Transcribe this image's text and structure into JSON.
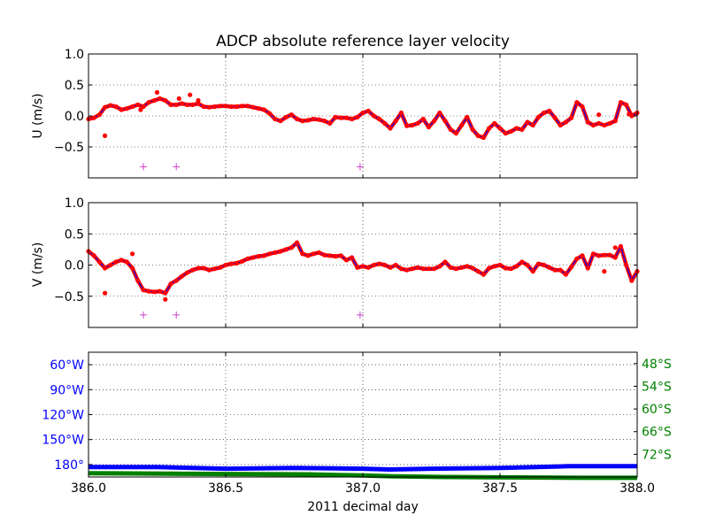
{
  "chart_data": [
    {
      "id": "u",
      "type": "scatter",
      "title": "ADCP absolute reference layer velocity",
      "ylabel": "U (m/s)",
      "xlim": [
        386.0,
        388.0
      ],
      "ylim": [
        -1.0,
        1.0
      ],
      "yticks": [
        -0.5,
        0.0,
        0.5,
        1.0
      ],
      "ytick_labels": [
        "−0.5",
        "0.0",
        "0.5",
        "1.0"
      ],
      "xticks": [
        386.0,
        386.5,
        387.0,
        387.5,
        388.0
      ],
      "grid": true,
      "colors": {
        "points": "#ff0000",
        "line": "#0000ff",
        "flags": "#cc44cc"
      },
      "series": [
        {
          "kind": "points+line",
          "x": [
            386.0,
            386.02,
            386.04,
            386.06,
            386.08,
            386.1,
            386.12,
            386.14,
            386.16,
            386.18,
            386.2,
            386.22,
            386.24,
            386.26,
            386.28,
            386.3,
            386.32,
            386.34,
            386.36,
            386.38,
            386.4,
            386.42,
            386.44,
            386.46,
            386.48,
            386.5,
            386.52,
            386.54,
            386.56,
            386.58,
            386.6,
            386.62,
            386.64,
            386.66,
            386.68,
            386.7,
            386.72,
            386.74,
            386.76,
            386.78,
            386.8,
            386.82,
            386.84,
            386.86,
            386.88,
            386.9,
            386.92,
            386.94,
            386.96,
            386.98,
            387.0,
            387.02,
            387.04,
            387.06,
            387.08,
            387.1,
            387.12,
            387.14,
            387.16,
            387.18,
            387.2,
            387.22,
            387.24,
            387.26,
            387.28,
            387.3,
            387.32,
            387.34,
            387.36,
            387.38,
            387.4,
            387.42,
            387.44,
            387.46,
            387.48,
            387.5,
            387.52,
            387.54,
            387.56,
            387.58,
            387.6,
            387.62,
            387.64,
            387.66,
            387.68,
            387.7,
            387.72,
            387.74,
            387.76,
            387.78,
            387.8,
            387.82,
            387.84,
            387.86,
            387.88,
            387.9,
            387.92,
            387.94,
            387.96,
            387.98,
            388.0
          ],
          "y": [
            -0.05,
            -0.03,
            0.02,
            0.14,
            0.17,
            0.15,
            0.1,
            0.12,
            0.15,
            0.18,
            0.15,
            0.22,
            0.25,
            0.28,
            0.25,
            0.18,
            0.18,
            0.2,
            0.18,
            0.18,
            0.2,
            0.15,
            0.14,
            0.15,
            0.16,
            0.16,
            0.15,
            0.15,
            0.16,
            0.16,
            0.14,
            0.12,
            0.1,
            0.04,
            -0.05,
            -0.08,
            -0.02,
            0.02,
            -0.05,
            -0.08,
            -0.07,
            -0.05,
            -0.06,
            -0.08,
            -0.12,
            -0.02,
            -0.03,
            -0.03,
            -0.05,
            -0.02,
            0.05,
            0.08,
            0.0,
            -0.05,
            -0.12,
            -0.2,
            -0.08,
            0.05,
            -0.16,
            -0.15,
            -0.12,
            -0.05,
            -0.18,
            -0.08,
            0.05,
            -0.08,
            -0.22,
            -0.28,
            -0.15,
            -0.02,
            -0.22,
            -0.32,
            -0.35,
            -0.2,
            -0.12,
            -0.2,
            -0.28,
            -0.25,
            -0.2,
            -0.22,
            -0.1,
            -0.15,
            -0.02,
            0.05,
            0.08,
            -0.03,
            -0.15,
            -0.1,
            -0.03,
            0.22,
            0.15,
            -0.1,
            -0.15,
            -0.12,
            -0.15,
            -0.12,
            -0.08,
            0.22,
            0.18,
            0.0,
            0.05
          ]
        },
        {
          "kind": "outliers",
          "x": [
            386.06,
            386.19,
            386.25,
            386.33,
            386.37,
            386.4,
            387.86,
            387.97
          ],
          "y": [
            -0.32,
            0.1,
            0.38,
            0.28,
            0.34,
            0.25,
            0.02,
            0.03
          ]
        },
        {
          "kind": "flags",
          "x": [
            386.2,
            386.32,
            386.99
          ],
          "y": [
            -0.82,
            -0.82,
            -0.82
          ]
        }
      ]
    },
    {
      "id": "v",
      "type": "scatter",
      "ylabel": "V (m/s)",
      "xlim": [
        386.0,
        388.0
      ],
      "ylim": [
        -1.0,
        1.0
      ],
      "yticks": [
        -0.5,
        0.0,
        0.5,
        1.0
      ],
      "ytick_labels": [
        "−0.5",
        "0.0",
        "0.5",
        "1.0"
      ],
      "xticks": [
        386.0,
        386.5,
        387.0,
        387.5,
        388.0
      ],
      "grid": true,
      "colors": {
        "points": "#ff0000",
        "line": "#0000ff",
        "flags": "#cc44cc"
      },
      "series": [
        {
          "kind": "points+line",
          "x": [
            386.0,
            386.02,
            386.04,
            386.06,
            386.08,
            386.1,
            386.12,
            386.14,
            386.16,
            386.18,
            386.2,
            386.22,
            386.24,
            386.26,
            386.28,
            386.3,
            386.32,
            386.34,
            386.36,
            386.38,
            386.4,
            386.42,
            386.44,
            386.46,
            386.48,
            386.5,
            386.52,
            386.54,
            386.56,
            386.58,
            386.6,
            386.62,
            386.64,
            386.66,
            386.68,
            386.7,
            386.72,
            386.74,
            386.76,
            386.78,
            386.8,
            386.82,
            386.84,
            386.86,
            386.88,
            386.9,
            386.92,
            386.94,
            386.96,
            386.98,
            387.0,
            387.02,
            387.04,
            387.06,
            387.08,
            387.1,
            387.12,
            387.14,
            387.16,
            387.18,
            387.2,
            387.22,
            387.24,
            387.26,
            387.28,
            387.3,
            387.32,
            387.34,
            387.36,
            387.38,
            387.4,
            387.42,
            387.44,
            387.46,
            387.48,
            387.5,
            387.52,
            387.54,
            387.56,
            387.58,
            387.6,
            387.62,
            387.64,
            387.66,
            387.68,
            387.7,
            387.72,
            387.74,
            387.76,
            387.78,
            387.8,
            387.82,
            387.84,
            387.86,
            387.88,
            387.9,
            387.92,
            387.94,
            387.96,
            387.98,
            388.0
          ],
          "y": [
            0.22,
            0.15,
            0.05,
            -0.05,
            0.0,
            0.05,
            0.08,
            0.05,
            -0.05,
            -0.25,
            -0.4,
            -0.42,
            -0.43,
            -0.42,
            -0.45,
            -0.3,
            -0.25,
            -0.18,
            -0.12,
            -0.08,
            -0.05,
            -0.05,
            -0.08,
            -0.06,
            -0.04,
            0.0,
            0.02,
            0.03,
            0.06,
            0.1,
            0.12,
            0.14,
            0.15,
            0.18,
            0.2,
            0.22,
            0.25,
            0.28,
            0.36,
            0.18,
            0.15,
            0.18,
            0.2,
            0.16,
            0.15,
            0.14,
            0.15,
            0.08,
            0.12,
            -0.04,
            -0.02,
            -0.04,
            0.0,
            0.02,
            0.0,
            -0.04,
            0.0,
            -0.06,
            -0.08,
            -0.06,
            -0.04,
            -0.06,
            -0.06,
            -0.06,
            -0.02,
            0.05,
            -0.04,
            -0.06,
            -0.04,
            -0.02,
            -0.05,
            -0.1,
            -0.15,
            -0.05,
            -0.02,
            0.0,
            -0.05,
            -0.06,
            -0.02,
            0.05,
            0.0,
            -0.1,
            0.02,
            0.0,
            -0.04,
            -0.08,
            -0.08,
            -0.15,
            -0.03,
            0.1,
            0.15,
            -0.05,
            0.18,
            0.15,
            0.16,
            0.16,
            0.12,
            0.3,
            0.0,
            -0.25,
            -0.1
          ]
        },
        {
          "kind": "outliers",
          "x": [
            386.06,
            386.16,
            386.28,
            387.88,
            387.92
          ],
          "y": [
            -0.45,
            0.18,
            -0.55,
            -0.1,
            0.28
          ]
        },
        {
          "kind": "flags",
          "x": [
            386.2,
            386.32,
            386.99
          ],
          "y": [
            -0.8,
            -0.8,
            -0.8
          ]
        }
      ]
    },
    {
      "id": "position",
      "type": "line",
      "xlabel": "2011 decimal day",
      "xlim": [
        386.0,
        388.0
      ],
      "xticks": [
        386.0,
        386.5,
        387.0,
        387.5,
        388.0
      ],
      "xtick_labels": [
        "386.0",
        "386.5",
        "387.0",
        "387.5",
        "388.0"
      ],
      "left_ylim": [
        195,
        45
      ],
      "left_yticks": [
        60,
        90,
        120,
        150,
        180
      ],
      "left_ytick_labels": [
        "60°W",
        "90°W",
        "120°W",
        "150°W",
        "180°"
      ],
      "right_ylim": [
        -78,
        -45
      ],
      "right_yticks": [
        -48,
        -54,
        -60,
        -66,
        -72
      ],
      "right_ytick_labels": [
        "48°S",
        "54°S",
        "60°S",
        "66°S",
        "72°S"
      ],
      "grid": true,
      "colors": {
        "left": "#0000ff",
        "right": "#008000"
      },
      "series": [
        {
          "axis": "left",
          "x": [
            386.0,
            386.25,
            386.5,
            386.75,
            387.0,
            387.1,
            387.25,
            387.5,
            387.75,
            388.0
          ],
          "y": [
            183,
            183,
            185,
            184,
            185,
            186,
            185,
            184,
            182,
            182
          ]
        },
        {
          "axis": "right",
          "x": [
            386.0,
            386.5,
            386.8,
            387.0,
            387.1,
            387.3,
            387.5,
            387.8,
            388.0
          ],
          "y": [
            -77.0,
            -77.2,
            -77.3,
            -77.6,
            -77.8,
            -78.0,
            -78.1,
            -78.2,
            -78.2
          ]
        }
      ]
    }
  ]
}
